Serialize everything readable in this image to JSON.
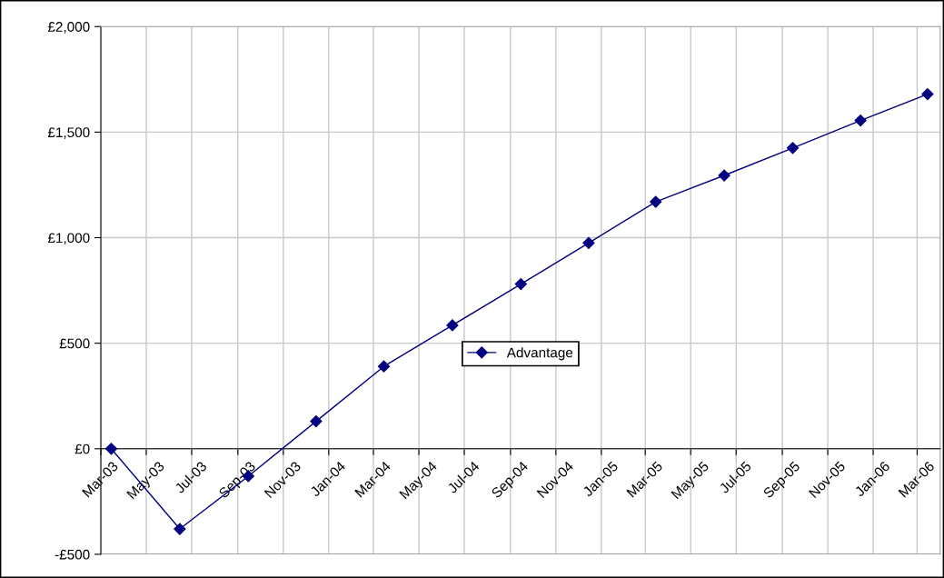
{
  "chart_data": {
    "type": "line",
    "x": [
      "2003-03-15",
      "2003-06-15",
      "2003-09-15",
      "2003-12-15",
      "2004-03-15",
      "2004-06-15",
      "2004-09-15",
      "2004-12-15",
      "2005-03-15",
      "2005-06-15",
      "2005-09-15",
      "2005-12-15",
      "2006-03-15"
    ],
    "series": [
      {
        "name": "Advantage",
        "color": "#000080",
        "values": [
          0,
          -380,
          -130,
          130,
          390,
          585,
          780,
          975,
          1170,
          1295,
          1425,
          1555,
          1680
        ]
      }
    ],
    "xlim": [
      "2003-03-01",
      "2006-04-01"
    ],
    "xticks": [
      {
        "value": "2003-03-01",
        "label": "Mar-03"
      },
      {
        "value": "2003-05-01",
        "label": "May-03"
      },
      {
        "value": "2003-07-01",
        "label": "Jul-03"
      },
      {
        "value": "2003-09-01",
        "label": "Sep-03"
      },
      {
        "value": "2003-11-01",
        "label": "Nov-03"
      },
      {
        "value": "2004-01-01",
        "label": "Jan-04"
      },
      {
        "value": "2004-03-01",
        "label": "Mar-04"
      },
      {
        "value": "2004-05-01",
        "label": "May-04"
      },
      {
        "value": "2004-07-01",
        "label": "Jul-04"
      },
      {
        "value": "2004-09-01",
        "label": "Sep-04"
      },
      {
        "value": "2004-11-01",
        "label": "Nov-04"
      },
      {
        "value": "2005-01-01",
        "label": "Jan-05"
      },
      {
        "value": "2005-03-01",
        "label": "Mar-05"
      },
      {
        "value": "2005-05-01",
        "label": "May-05"
      },
      {
        "value": "2005-07-01",
        "label": "Jul-05"
      },
      {
        "value": "2005-09-01",
        "label": "Sep-05"
      },
      {
        "value": "2005-11-01",
        "label": "Nov-05"
      },
      {
        "value": "2006-01-01",
        "label": "Jan-06"
      },
      {
        "value": "2006-03-01",
        "label": "Mar-06"
      }
    ],
    "ylim": [
      -500,
      2000
    ],
    "yticks": [
      {
        "value": -500,
        "label": "-£500"
      },
      {
        "value": 0,
        "label": "£0"
      },
      {
        "value": 500,
        "label": "£500"
      },
      {
        "value": 1000,
        "label": "£1,000"
      },
      {
        "value": 1500,
        "label": "£1,500"
      },
      {
        "value": 2000,
        "label": "£2,000"
      }
    ],
    "grid": true,
    "legend": "center",
    "marker": "diamond",
    "line_style": "solid"
  }
}
